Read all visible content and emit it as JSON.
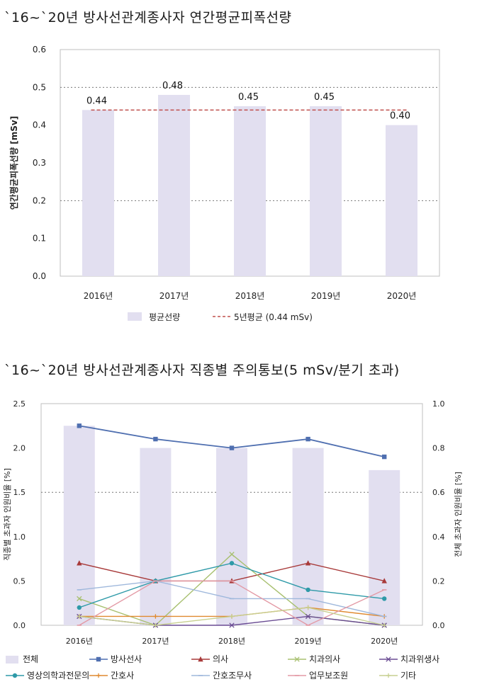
{
  "titles": {
    "chart1": "`16~`20년 방사선관계종사자 연간평균피폭선량",
    "chart2": "`16~`20년 방사선관계종사자 직종별 주의통보(5 mSv/분기 초과)"
  },
  "chart_data": [
    {
      "type": "bar",
      "title": "`16~`20년 방사선관계종사자 연간평균피폭선량",
      "categories": [
        "2016년",
        "2017년",
        "2018년",
        "2019년",
        "2020년"
      ],
      "series": [
        {
          "name": "평균선량",
          "values": [
            0.44,
            0.48,
            0.45,
            0.45,
            0.4
          ],
          "color": "#e2dff0"
        },
        {
          "name": "5년평균 (0.44 mSv)",
          "type": "reference-line",
          "value": 0.44,
          "color": "#c0504d"
        }
      ],
      "data_labels": [
        "0.44",
        "0.48",
        "0.45",
        "0.45",
        "0.40"
      ],
      "ylabel": "연간평균피폭선량 [mSv]",
      "xlabel": "",
      "ylim": [
        0,
        0.6
      ],
      "yticks": [
        "0.0",
        "0.1",
        "0.2",
        "0.3",
        "0.4",
        "0.5",
        "0.6"
      ],
      "grid": "dotted at 0.2 and 0.5",
      "legend": "bottom"
    },
    {
      "type": "bar+line",
      "title": "`16~`20년 방사선관계종사자 직종별 주의통보(5 mSv/분기 초과)",
      "categories": [
        "2016년",
        "2017년",
        "2018년",
        "2019년",
        "2020년"
      ],
      "ylabel": "직종별 초과자 인원비율 [%]",
      "y2label": "전체 초과자 인원비율 [%]",
      "ylim": [
        0,
        2.5
      ],
      "y2lim": [
        0,
        1.0
      ],
      "yticks": [
        "0.0",
        "0.5",
        "1.0",
        "1.5",
        "2.0",
        "2.5"
      ],
      "y2ticks": [
        "0.0",
        "0.2",
        "0.4",
        "0.6",
        "0.8",
        "1.0"
      ],
      "grid": "dotted at 1.5",
      "legend": "bottom",
      "series": [
        {
          "name": "전체",
          "kind": "bar",
          "axis": "right",
          "values": [
            0.9,
            0.8,
            0.8,
            0.8,
            0.7
          ],
          "color": "#e2dff0",
          "legend_label": "전체"
        },
        {
          "name": "방사선사",
          "kind": "line",
          "marker": "square",
          "values": [
            2.25,
            2.1,
            2.0,
            2.1,
            1.9
          ],
          "color": "#4f6fb0",
          "legend_label": "방사선사"
        },
        {
          "name": "의사",
          "kind": "line",
          "marker": "triangle",
          "values": [
            0.7,
            0.5,
            0.5,
            0.7,
            0.5
          ],
          "color": "#a83a3a",
          "legend_label": "의사"
        },
        {
          "name": "치과의사",
          "kind": "line",
          "marker": "x",
          "values": [
            0.3,
            0.0,
            0.8,
            0.1,
            0.0
          ],
          "color": "#a8c070",
          "legend_label": "치과의사"
        },
        {
          "name": "치과위생사",
          "kind": "line",
          "marker": "x",
          "values": [
            0.1,
            0.0,
            0.0,
            0.1,
            0.0
          ],
          "color": "#6a4c93",
          "legend_label": "치과위생사"
        },
        {
          "name": "영상의학과전문의",
          "kind": "line",
          "marker": "circle",
          "values": [
            0.2,
            0.5,
            0.7,
            0.4,
            0.3
          ],
          "color": "#2e9aa8",
          "legend_label": "영상의학과전문의"
        },
        {
          "name": "간호사",
          "kind": "line",
          "marker": "plus",
          "values": [
            0.1,
            0.1,
            0.1,
            0.2,
            0.1
          ],
          "color": "#e08a30",
          "legend_label": "간호사"
        },
        {
          "name": "간호조무사",
          "kind": "line",
          "marker": "dash",
          "values": [
            0.4,
            0.5,
            0.3,
            0.3,
            0.1
          ],
          "color": "#9fb8dc",
          "legend_label": "간호조무사"
        },
        {
          "name": "업무보조원",
          "kind": "line",
          "marker": "dash",
          "values": [
            0.0,
            0.5,
            0.5,
            0.0,
            0.4
          ],
          "color": "#e39aa5",
          "legend_label": "업무보조원"
        },
        {
          "name": "기타",
          "kind": "line",
          "marker": "plus",
          "values": [
            0.1,
            0.0,
            0.1,
            0.2,
            0.0
          ],
          "color": "#c7cf90",
          "legend_label": "기타"
        }
      ]
    }
  ]
}
